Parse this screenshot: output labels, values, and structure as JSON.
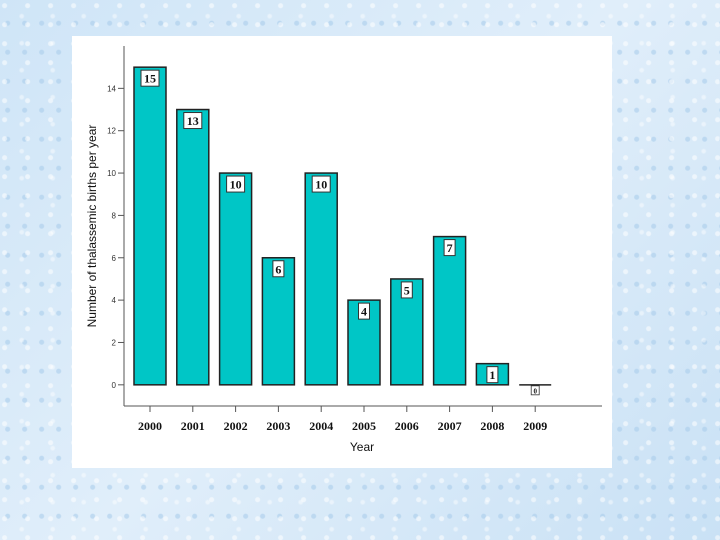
{
  "chart_data": {
    "type": "bar",
    "title": "",
    "xlabel": "Year",
    "ylabel": "Number of thalassemic births per year",
    "categories": [
      "2000",
      "2001",
      "2002",
      "2003",
      "2004",
      "2005",
      "2006",
      "2007",
      "2008",
      "2009"
    ],
    "values": [
      15,
      13,
      10,
      6,
      10,
      4,
      5,
      7,
      1,
      0
    ],
    "data_labels": [
      "15",
      "13",
      "10",
      "6",
      "10",
      "4",
      "5",
      "7",
      "1",
      "0"
    ],
    "yticks": [
      "0",
      "2",
      "4",
      "6",
      "8",
      "10",
      "12",
      "14"
    ],
    "ylim": [
      -1,
      16
    ],
    "grid": false,
    "legend": "none",
    "colors": {
      "bar": "#00c6c6",
      "bar_edge": "#222222",
      "panel": "#ffffff"
    }
  }
}
